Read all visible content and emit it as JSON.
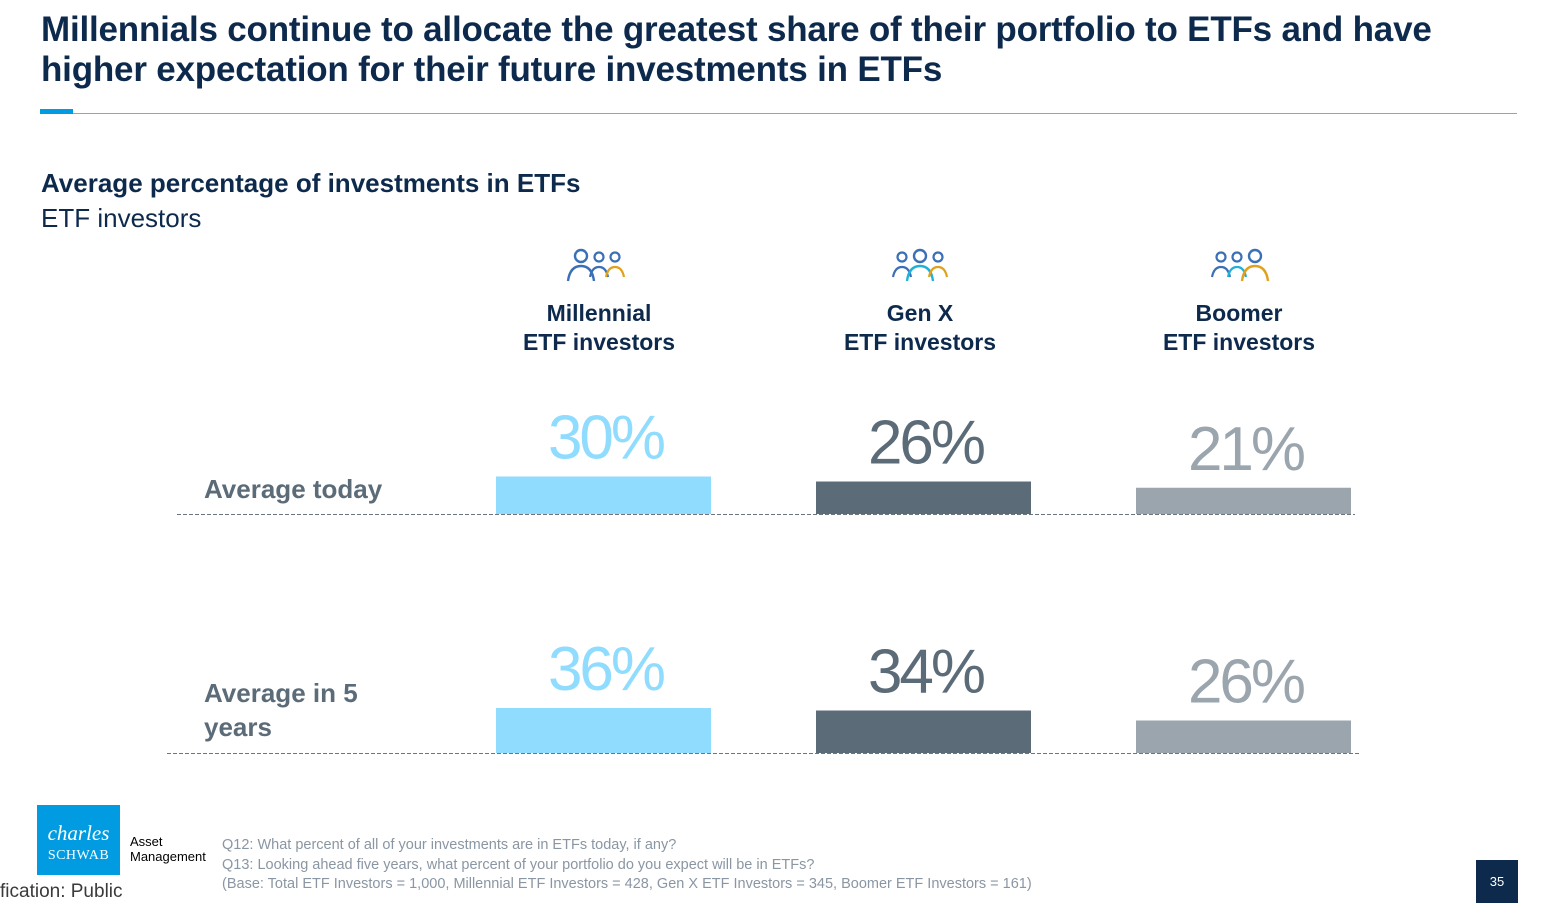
{
  "slide": {
    "title": "Millennials continue to allocate the greatest share of their portfolio to ETFs and have higher expectation for their future investments in ETFs",
    "subtitle": "Average percentage of investments in ETFs",
    "subtitle2": "ETF investors",
    "page_number": "35",
    "classification": "fication: Public"
  },
  "columns": [
    {
      "line1": "Millennial",
      "line2": "ETF investors",
      "icon": "people-group-icon"
    },
    {
      "line1": "Gen X",
      "line2": "ETF investors",
      "icon": "people-group-icon"
    },
    {
      "line1": "Boomer",
      "line2": "ETF investors",
      "icon": "people-group-icon"
    }
  ],
  "rows": [
    {
      "label": "Average today"
    },
    {
      "label_line1": "Average in 5",
      "label_line2": "years"
    }
  ],
  "footnotes": {
    "q12": "Q12: What percent of all of your investments are in ETFs today, if any?",
    "q13": "Q13: Looking ahead five years, what percent of your portfolio do you expect will be in ETFs?",
    "base": "(Base: Total ETF Investors = 1,000, Millennial ETF Investors = 428, Gen X ETF Investors = 345, Boomer ETF Investors = 161)"
  },
  "logo": {
    "line1": "charles",
    "line2": "SCHWAB",
    "am1": "Asset",
    "am2": "Management"
  },
  "colors": {
    "millennial": "#8fdcff",
    "genx": "#5c6b78",
    "boomer": "#9ba5ae",
    "navy": "#0d2a4d",
    "accent": "#009be0"
  },
  "chart_data": {
    "type": "bar",
    "title": "Average percentage of investments in ETFs",
    "categories": [
      "Average today",
      "Average in 5 years"
    ],
    "series": [
      {
        "name": "Millennial ETF investors",
        "values": [
          30,
          36
        ],
        "labels": [
          "30%",
          "36%"
        ]
      },
      {
        "name": "Gen X ETF investors",
        "values": [
          26,
          34
        ],
        "labels": [
          "26%",
          "34%"
        ]
      },
      {
        "name": "Boomer ETF investors",
        "values": [
          21,
          26
        ],
        "labels": [
          "21%",
          "26%"
        ]
      }
    ],
    "unit": "%"
  }
}
